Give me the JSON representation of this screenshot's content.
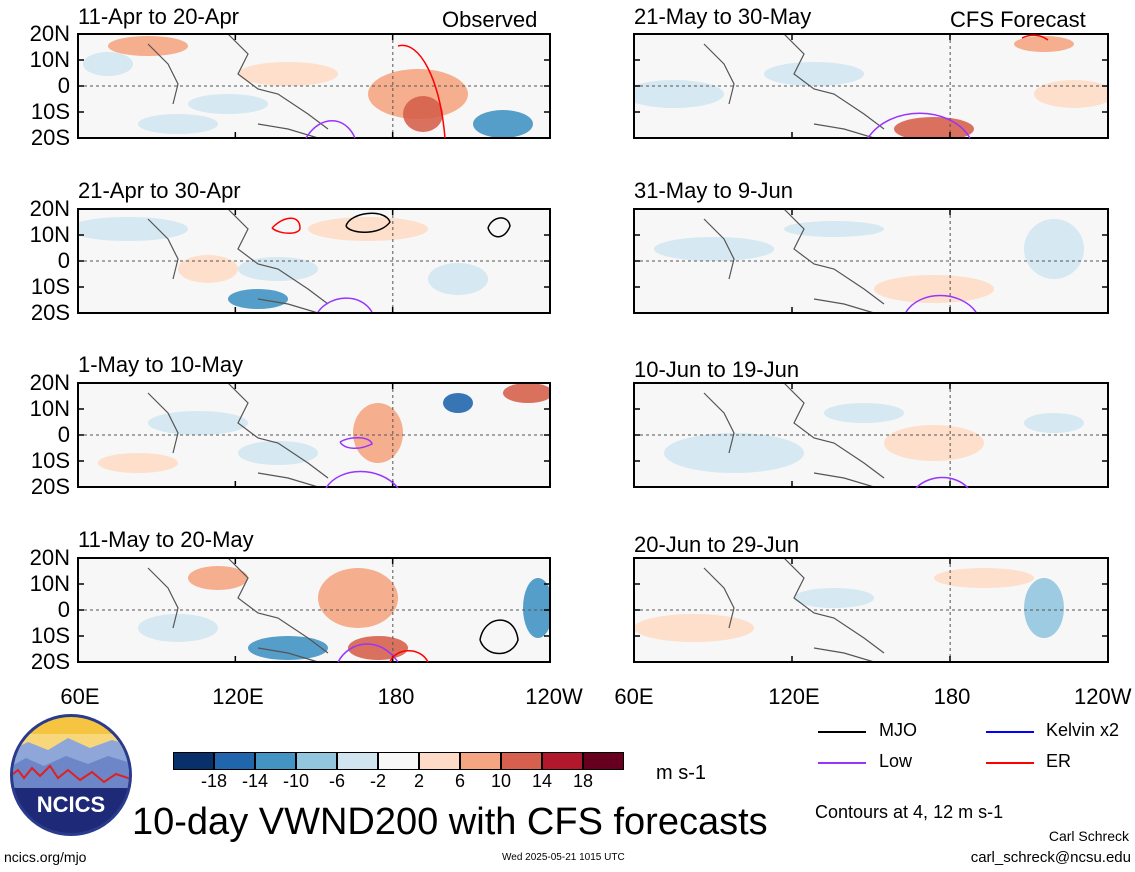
{
  "labels": {
    "observed": "Observed",
    "forecast": "CFS Forecast",
    "main_title": "10-day VWND200 with CFS forecasts",
    "units": "m s-1",
    "contours_note": "Contours at 4, 12 m s-1",
    "author": "Carl Schreck",
    "email": "carl_schreck@ncsu.edu",
    "url": "ncics.org/mjo",
    "timestamp": "Wed 2025-05-21 1015 UTC",
    "logo_text": "NCICS"
  },
  "lat_ticks": [
    "20N",
    "10N",
    "0",
    "10S",
    "20S"
  ],
  "lon_ticks": [
    "60E",
    "120E",
    "180",
    "120W"
  ],
  "panels_left": [
    {
      "title": "11-Apr to 20-Apr"
    },
    {
      "title": "21-Apr to 30-Apr"
    },
    {
      "title": "1-May to 10-May"
    },
    {
      "title": "11-May to 20-May"
    }
  ],
  "panels_right": [
    {
      "title": "21-May to 30-May"
    },
    {
      "title": "31-May to 9-Jun"
    },
    {
      "title": "10-Jun to 19-Jun"
    },
    {
      "title": "20-Jun to 29-Jun"
    }
  ],
  "colorbar": {
    "labels": [
      "-18",
      "-14",
      "-10",
      "-6",
      "-2",
      "2",
      "6",
      "10",
      "14",
      "18"
    ],
    "colors": [
      "#08306b",
      "#2166ac",
      "#4393c3",
      "#92c5de",
      "#d1e5f0",
      "#f7f7f7",
      "#fddbc7",
      "#f4a582",
      "#d6604d",
      "#b2182b",
      "#67001f"
    ]
  },
  "legend": [
    {
      "label": "MJO",
      "color": "#000000"
    },
    {
      "label": "Kelvin x2",
      "color": "#0000ff"
    },
    {
      "label": "Low",
      "color": "#9933ff"
    },
    {
      "label": "ER",
      "color": "#ff0000"
    }
  ]
}
